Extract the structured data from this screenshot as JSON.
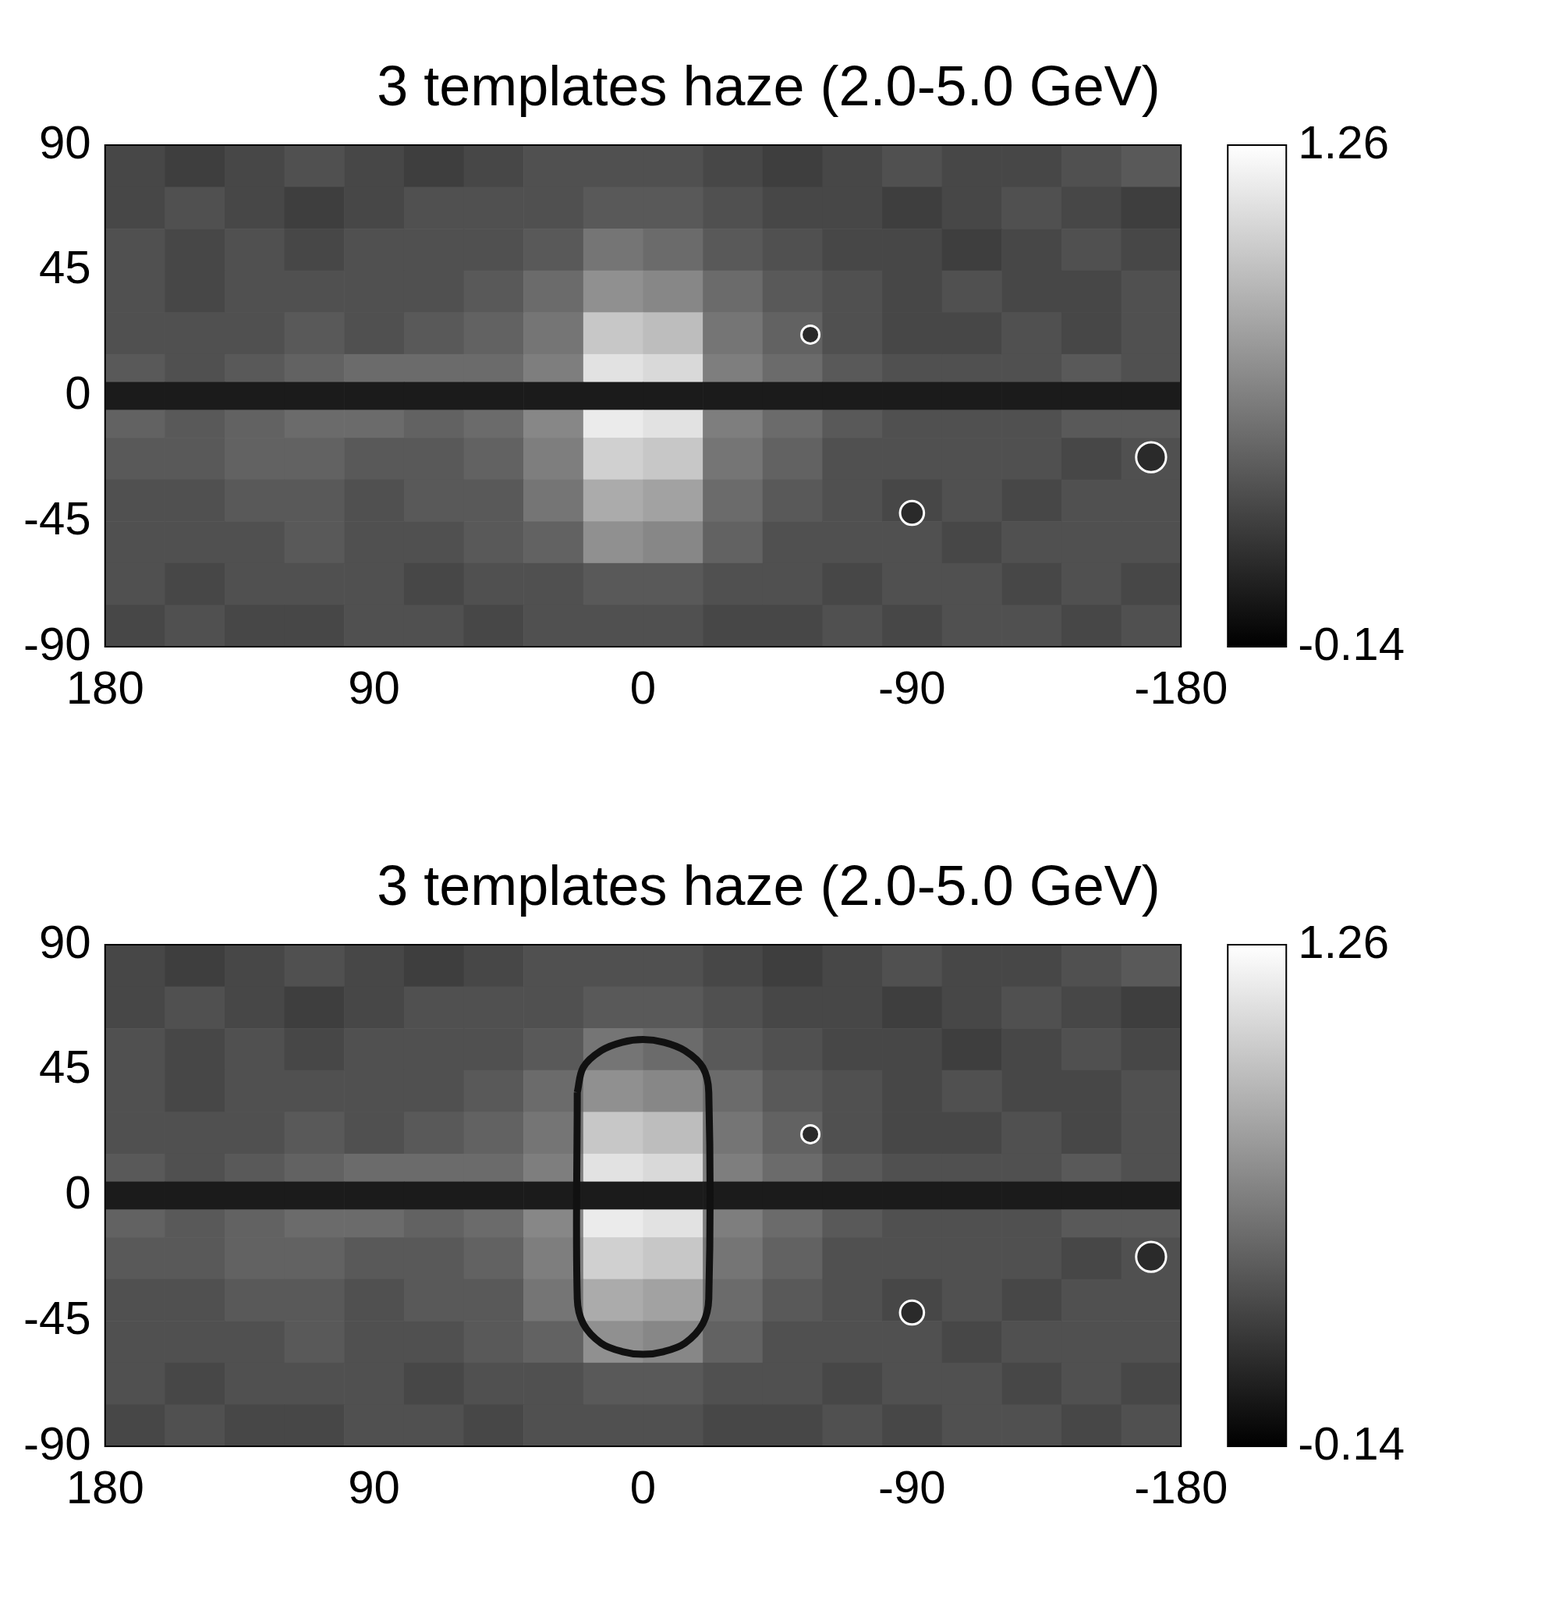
{
  "chart_data": [
    {
      "type": "heatmap",
      "title": "3 templates haze (2.0-5.0 GeV)",
      "xlim": [
        180,
        -180
      ],
      "xticks": [
        180,
        90,
        0,
        -90,
        -180
      ],
      "ylim": [
        -90,
        90
      ],
      "yticks": [
        90,
        45,
        0,
        -45,
        -90
      ],
      "x_edges": [
        180,
        160,
        140,
        120,
        100,
        80,
        60,
        40,
        20,
        0,
        -20,
        -40,
        -60,
        -80,
        -100,
        -120,
        -140,
        -160,
        -180
      ],
      "y_edges": [
        90,
        75,
        60,
        45,
        30,
        15,
        5,
        -5,
        -15,
        -30,
        -45,
        -60,
        -75,
        -90
      ],
      "cells": [
        [
          0.25,
          0.2,
          0.25,
          0.3,
          0.25,
          0.2,
          0.25,
          0.3,
          0.3,
          0.3,
          0.25,
          0.2,
          0.25,
          0.3,
          0.25,
          0.25,
          0.3,
          0.35
        ],
        [
          0.25,
          0.3,
          0.25,
          0.2,
          0.25,
          0.3,
          0.3,
          0.3,
          0.35,
          0.35,
          0.3,
          0.25,
          0.25,
          0.2,
          0.25,
          0.3,
          0.25,
          0.2
        ],
        [
          0.3,
          0.25,
          0.3,
          0.25,
          0.3,
          0.3,
          0.3,
          0.35,
          0.5,
          0.45,
          0.35,
          0.3,
          0.25,
          0.25,
          0.2,
          0.25,
          0.3,
          0.25
        ],
        [
          0.3,
          0.25,
          0.3,
          0.3,
          0.3,
          0.3,
          0.35,
          0.45,
          0.65,
          0.6,
          0.45,
          0.35,
          0.3,
          0.25,
          0.3,
          0.25,
          0.25,
          0.3
        ],
        [
          0.3,
          0.3,
          0.3,
          0.35,
          0.3,
          0.35,
          0.4,
          0.5,
          0.95,
          0.9,
          0.5,
          0.4,
          0.3,
          0.25,
          0.25,
          0.3,
          0.25,
          0.3
        ],
        [
          0.35,
          0.3,
          0.35,
          0.4,
          0.45,
          0.45,
          0.45,
          0.55,
          1.1,
          1.05,
          0.55,
          0.45,
          0.35,
          0.3,
          0.3,
          0.3,
          0.35,
          0.3
        ],
        [
          null,
          null,
          null,
          null,
          null,
          null,
          null,
          null,
          null,
          null,
          null,
          null,
          null,
          null,
          null,
          null,
          null,
          null
        ],
        [
          0.4,
          0.35,
          0.4,
          0.45,
          0.45,
          0.4,
          0.45,
          0.6,
          1.15,
          1.1,
          0.55,
          0.45,
          0.35,
          0.3,
          0.3,
          0.3,
          0.35,
          0.35
        ],
        [
          0.35,
          0.35,
          0.4,
          0.4,
          0.35,
          0.35,
          0.4,
          0.55,
          1.0,
          0.95,
          0.5,
          0.4,
          0.3,
          0.3,
          0.3,
          0.3,
          0.25,
          0.3
        ],
        [
          0.3,
          0.3,
          0.35,
          0.35,
          0.3,
          0.35,
          0.35,
          0.5,
          0.8,
          0.75,
          0.45,
          0.35,
          0.3,
          0.25,
          0.3,
          0.25,
          0.3,
          0.3
        ],
        [
          0.3,
          0.3,
          0.3,
          0.35,
          0.3,
          0.3,
          0.35,
          0.4,
          0.65,
          0.6,
          0.4,
          0.3,
          0.3,
          0.3,
          0.25,
          0.3,
          0.3,
          0.3
        ],
        [
          0.3,
          0.25,
          0.3,
          0.3,
          0.3,
          0.25,
          0.3,
          0.3,
          0.35,
          0.35,
          0.3,
          0.3,
          0.25,
          0.3,
          0.3,
          0.25,
          0.3,
          0.25
        ],
        [
          0.25,
          0.3,
          0.25,
          0.25,
          0.3,
          0.3,
          0.25,
          0.3,
          0.3,
          0.3,
          0.25,
          0.25,
          0.3,
          0.25,
          0.3,
          0.3,
          0.25,
          0.3
        ]
      ],
      "colorbar": {
        "range": [
          -0.14,
          1.26
        ],
        "ticks": [
          1.26,
          -0.14
        ]
      },
      "sources": [
        {
          "lon": -56,
          "lat": 22,
          "radius": 3
        },
        {
          "lon": -90,
          "lat": -42,
          "radius": 4
        },
        {
          "lon": -170,
          "lat": -22,
          "radius": 5
        }
      ]
    },
    {
      "type": "heatmap",
      "title": "3 templates haze (2.0-5.0 GeV)",
      "xlim": [
        180,
        -180
      ],
      "xticks": [
        180,
        90,
        0,
        -90,
        -180
      ],
      "ylim": [
        -90,
        90
      ],
      "yticks": [
        90,
        45,
        0,
        -45,
        -90
      ],
      "x_edges": [
        180,
        160,
        140,
        120,
        100,
        80,
        60,
        40,
        20,
        0,
        -20,
        -40,
        -60,
        -80,
        -100,
        -120,
        -140,
        -160,
        -180
      ],
      "y_edges": [
        90,
        75,
        60,
        45,
        30,
        15,
        5,
        -5,
        -15,
        -30,
        -45,
        -60,
        -75,
        -90
      ],
      "cells": [
        [
          0.25,
          0.2,
          0.25,
          0.3,
          0.25,
          0.2,
          0.25,
          0.3,
          0.3,
          0.3,
          0.25,
          0.2,
          0.25,
          0.3,
          0.25,
          0.25,
          0.3,
          0.35
        ],
        [
          0.25,
          0.3,
          0.25,
          0.2,
          0.25,
          0.3,
          0.3,
          0.3,
          0.35,
          0.35,
          0.3,
          0.25,
          0.25,
          0.2,
          0.25,
          0.3,
          0.25,
          0.2
        ],
        [
          0.3,
          0.25,
          0.3,
          0.25,
          0.3,
          0.3,
          0.3,
          0.35,
          0.5,
          0.45,
          0.35,
          0.3,
          0.25,
          0.25,
          0.2,
          0.25,
          0.3,
          0.25
        ],
        [
          0.3,
          0.25,
          0.3,
          0.3,
          0.3,
          0.3,
          0.35,
          0.45,
          0.65,
          0.6,
          0.45,
          0.35,
          0.3,
          0.25,
          0.3,
          0.25,
          0.25,
          0.3
        ],
        [
          0.3,
          0.3,
          0.3,
          0.35,
          0.3,
          0.35,
          0.4,
          0.5,
          0.95,
          0.9,
          0.5,
          0.4,
          0.3,
          0.25,
          0.25,
          0.3,
          0.25,
          0.3
        ],
        [
          0.35,
          0.3,
          0.35,
          0.4,
          0.45,
          0.45,
          0.45,
          0.55,
          1.1,
          1.05,
          0.55,
          0.45,
          0.35,
          0.3,
          0.3,
          0.3,
          0.35,
          0.3
        ],
        [
          null,
          null,
          null,
          null,
          null,
          null,
          null,
          null,
          null,
          null,
          null,
          null,
          null,
          null,
          null,
          null,
          null,
          null
        ],
        [
          0.4,
          0.35,
          0.4,
          0.45,
          0.45,
          0.4,
          0.45,
          0.6,
          1.15,
          1.1,
          0.55,
          0.45,
          0.35,
          0.3,
          0.3,
          0.3,
          0.35,
          0.35
        ],
        [
          0.35,
          0.35,
          0.4,
          0.4,
          0.35,
          0.35,
          0.4,
          0.55,
          1.0,
          0.95,
          0.5,
          0.4,
          0.3,
          0.3,
          0.3,
          0.3,
          0.25,
          0.3
        ],
        [
          0.3,
          0.3,
          0.35,
          0.35,
          0.3,
          0.35,
          0.35,
          0.5,
          0.8,
          0.75,
          0.45,
          0.35,
          0.3,
          0.25,
          0.3,
          0.25,
          0.3,
          0.3
        ],
        [
          0.3,
          0.3,
          0.3,
          0.35,
          0.3,
          0.3,
          0.35,
          0.4,
          0.65,
          0.6,
          0.4,
          0.3,
          0.3,
          0.3,
          0.25,
          0.3,
          0.3,
          0.3
        ],
        [
          0.3,
          0.25,
          0.3,
          0.3,
          0.3,
          0.25,
          0.3,
          0.3,
          0.35,
          0.35,
          0.3,
          0.3,
          0.25,
          0.3,
          0.3,
          0.25,
          0.3,
          0.25
        ],
        [
          0.25,
          0.3,
          0.25,
          0.25,
          0.3,
          0.3,
          0.25,
          0.3,
          0.3,
          0.3,
          0.25,
          0.25,
          0.3,
          0.25,
          0.3,
          0.3,
          0.25,
          0.3
        ]
      ],
      "colorbar": {
        "range": [
          -0.14,
          1.26
        ],
        "ticks": [
          1.26,
          -0.14
        ]
      },
      "sources": [
        {
          "lon": -56,
          "lat": 22,
          "radius": 3
        },
        {
          "lon": -90,
          "lat": -42,
          "radius": 4
        },
        {
          "lon": -170,
          "lat": -22,
          "radius": 5
        }
      ],
      "outline": {
        "x": [
          22,
          22,
          20,
          14,
          7,
          0,
          -7,
          -14,
          -20,
          -22,
          -22,
          -20,
          -14,
          -7,
          0,
          7,
          14,
          20,
          22
        ],
        "y": [
          37,
          -37,
          -46,
          -53,
          -56,
          -57,
          -56,
          -53,
          -46,
          -37,
          37,
          46,
          52,
          55,
          56,
          55,
          52,
          46,
          37
        ]
      }
    }
  ]
}
